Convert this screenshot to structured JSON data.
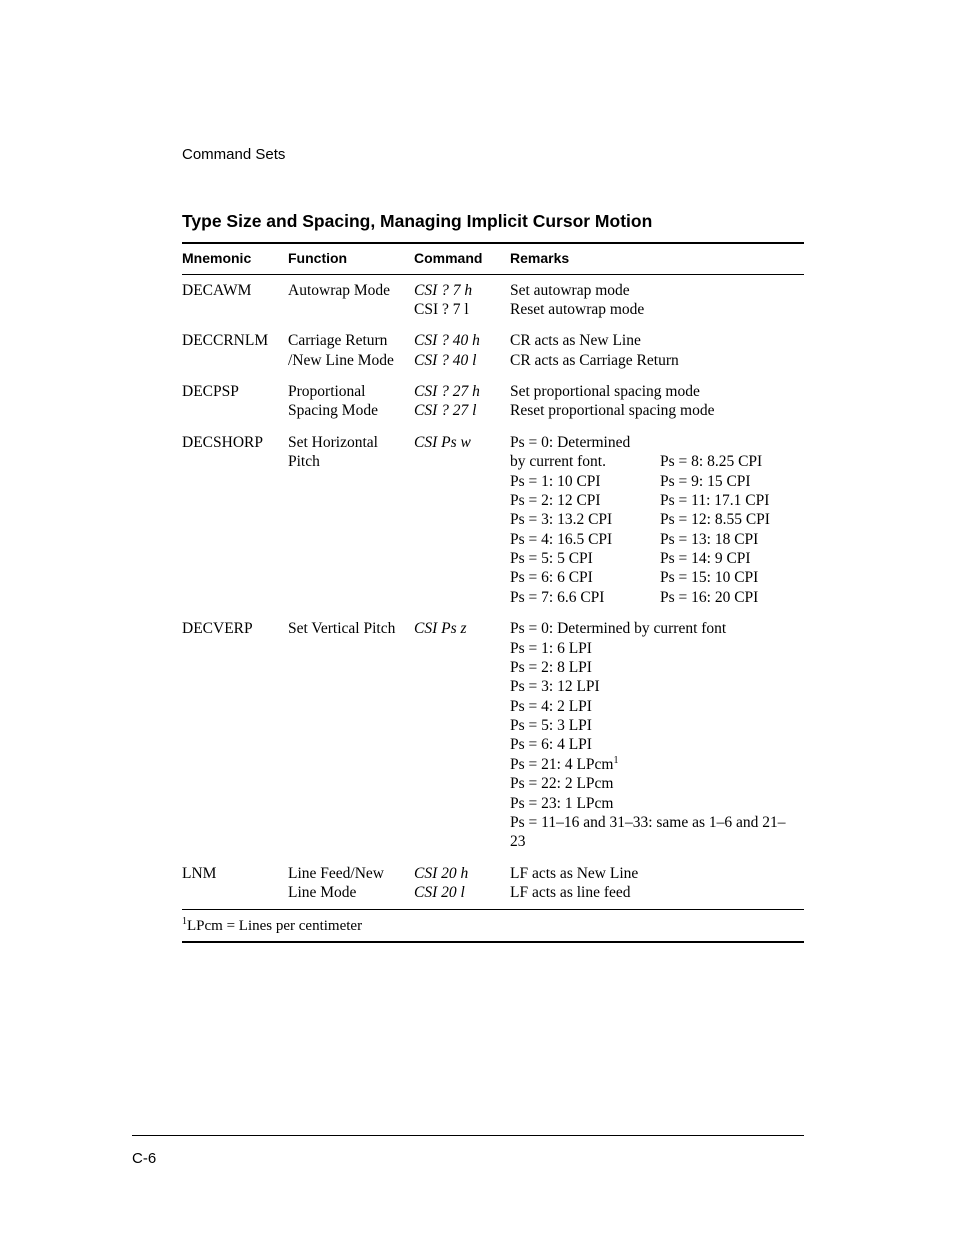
{
  "page": {
    "running_head": "Command Sets",
    "section_title": "Type Size and Spacing, Managing Implicit Cursor Motion",
    "page_number": "C-6"
  },
  "table": {
    "headers": {
      "mnemonic": "Mnemonic",
      "function": "Function",
      "command": "Command",
      "remarks": "Remarks"
    },
    "rows": {
      "decawm": {
        "mnemonic": "DECAWM",
        "function": "Autowrap Mode",
        "command": {
          "l1": "CSI ? 7 h",
          "l2": "CSI ? 7 l"
        },
        "remarks": {
          "l1": "Set autowrap mode",
          "l2": "Reset autowrap mode"
        }
      },
      "deccrnlm": {
        "mnemonic": "DECCRNLM",
        "function": "Carriage Return /New Line Mode",
        "command": {
          "l1": "CSI ? 40 h",
          "l2": "CSI ? 40 l"
        },
        "remarks": {
          "l1": "CR acts as New Line",
          "l2": "CR acts as Carriage Return"
        }
      },
      "decpsp": {
        "mnemonic": "DECPSP",
        "function": "Proportional Spacing Mode",
        "command": {
          "l1": "CSI ? 27 h",
          "l2": "CSI ? 27 l"
        },
        "remarks": {
          "l1": "Set proportional spacing mode",
          "l2": "Reset proportional spacing mode"
        }
      },
      "decshorp": {
        "mnemonic": "DECSHORP",
        "function": "Set Horizontal Pitch",
        "command": "CSI Ps w",
        "remarks": {
          "left": [
            "Ps = 0: Determined",
            "by current font.",
            "Ps = 1: 10 CPI",
            "Ps = 2: 12 CPI",
            "Ps = 3: 13.2 CPI",
            "Ps = 4: 16.5 CPI",
            "Ps = 5: 5 CPI",
            "Ps = 6: 6 CPI",
            "Ps = 7: 6.6 CPI"
          ],
          "right": [
            "",
            "Ps = 8: 8.25 CPI",
            "Ps = 9: 15 CPI",
            "Ps = 11: 17.1 CPI",
            "Ps = 12: 8.55 CPI",
            "Ps = 13: 18 CPI",
            "Ps = 14: 9 CPI",
            "Ps = 15: 10 CPI",
            "Ps = 16: 20 CPI"
          ]
        }
      },
      "decverp": {
        "mnemonic": "DECVERP",
        "function": "Set Vertical Pitch",
        "command": "CSI Ps z",
        "remarks": {
          "lines": [
            "Ps = 0: Determined by current font",
            "Ps = 1: 6 LPI",
            "Ps = 2: 8 LPI",
            "Ps = 3: 12 LPI",
            "Ps = 4: 2 LPI",
            "Ps = 5: 3 LPI",
            "Ps = 6: 4 LPI"
          ],
          "l8a": "Ps = 21: 4 LPcm",
          "l8b": "1",
          "l9": "Ps = 22: 2 LPcm",
          "l10": "Ps = 23: 1 LPcm",
          "l11": "Ps = 11–16 and 31–33: same as 1–6 and 21–23"
        }
      },
      "lnm": {
        "mnemonic": "LNM",
        "function": "Line Feed/New Line Mode",
        "command": {
          "l1": "CSI 20 h",
          "l2": "CSI 20 l"
        },
        "remarks": {
          "l1": "LF acts as New Line",
          "l2": "LF acts as line feed"
        }
      }
    },
    "footnote": {
      "sup": "1",
      "text": "LPcm = Lines per centimeter"
    }
  }
}
